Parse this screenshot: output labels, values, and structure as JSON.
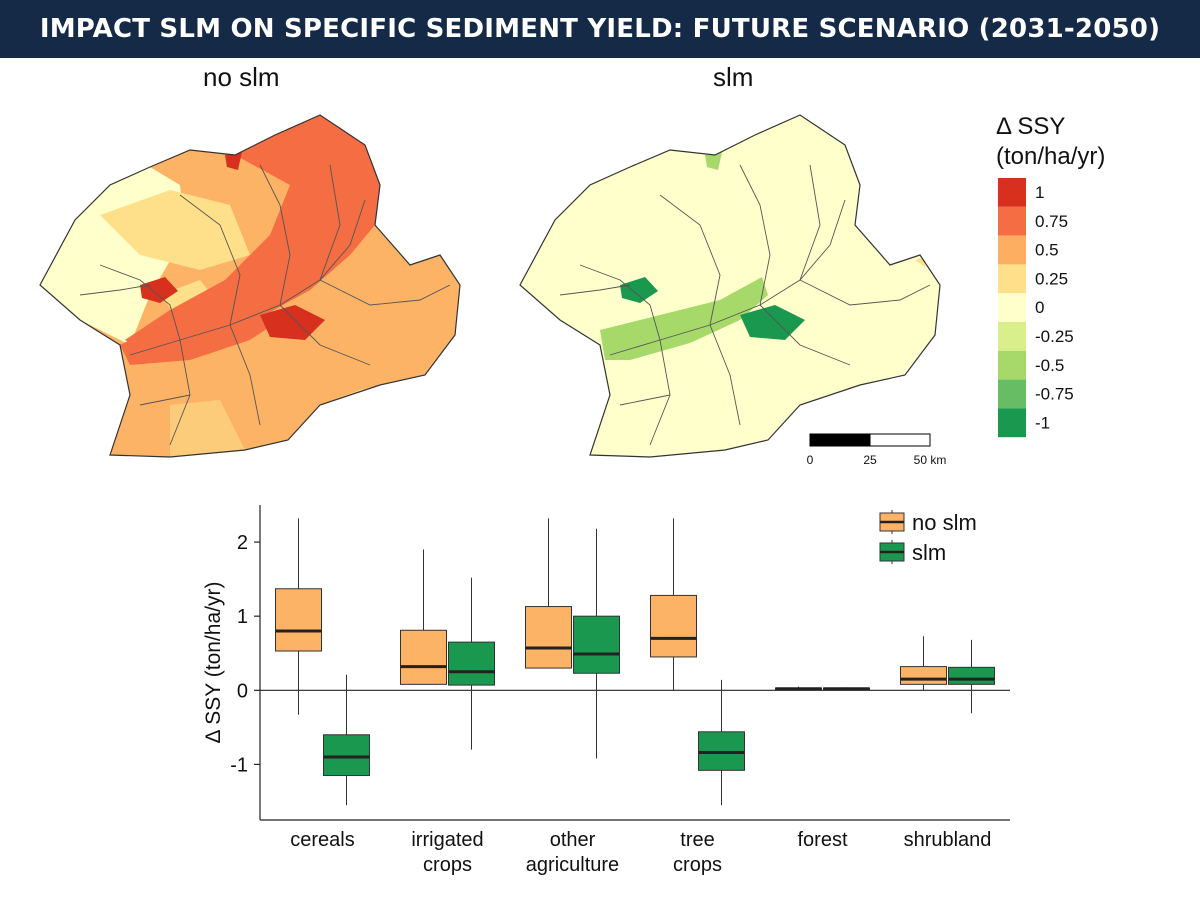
{
  "header": {
    "title": "IMPACT SLM ON SPECIFIC SEDIMENT YIELD: FUTURE SCENARIO (2031-2050)"
  },
  "maps": {
    "left_title": "no slm",
    "right_title": "slm"
  },
  "color_legend": {
    "title_line1": "Δ SSY",
    "title_line2": "(ton/ha/yr)",
    "items": [
      {
        "label": "1",
        "color": "#d7301f"
      },
      {
        "label": "0.75",
        "color": "#f46d43"
      },
      {
        "label": "0.5",
        "color": "#fdae61"
      },
      {
        "label": "0.25",
        "color": "#fee08b"
      },
      {
        "label": "0",
        "color": "#ffffcc"
      },
      {
        "label": "-0.25",
        "color": "#d9ef8b"
      },
      {
        "label": "-0.5",
        "color": "#a6d96a"
      },
      {
        "label": "-0.75",
        "color": "#66bd63"
      },
      {
        "label": "-1",
        "color": "#1a9850"
      }
    ]
  },
  "scale_bar": {
    "labels": [
      "0",
      "25",
      "50 km"
    ]
  },
  "chart_data": {
    "type": "boxplot",
    "ylabel": "Δ SSY (ton/ha/yr)",
    "ylim": [
      -1.75,
      2.5
    ],
    "yticks": [
      -1,
      0,
      1,
      2
    ],
    "reference_line": 0,
    "categories": [
      "cereals",
      "irrigated crops",
      "other agriculture",
      "tree crops",
      "forest",
      "shrubland"
    ],
    "category_lines": [
      [
        "cereals"
      ],
      [
        "irrigated",
        "crops"
      ],
      [
        "other",
        "agriculture"
      ],
      [
        "tree",
        "crops"
      ],
      [
        "forest"
      ],
      [
        "shrubland"
      ]
    ],
    "legend": {
      "position": "top-right"
    },
    "series": [
      {
        "name": "no slm",
        "color": "#fdb366",
        "boxes": [
          {
            "whisker_low": -0.33,
            "q1": 0.53,
            "median": 0.8,
            "q3": 1.37,
            "whisker_high": 2.32
          },
          {
            "whisker_low": 0.08,
            "q1": 0.08,
            "median": 0.32,
            "q3": 0.81,
            "whisker_high": 1.9
          },
          {
            "whisker_low": 0.3,
            "q1": 0.3,
            "median": 0.57,
            "q3": 1.13,
            "whisker_high": 2.32
          },
          {
            "whisker_low": 0.0,
            "q1": 0.45,
            "median": 0.7,
            "q3": 1.28,
            "whisker_high": 2.32
          },
          {
            "whisker_low": 0.0,
            "q1": 0.01,
            "median": 0.02,
            "q3": 0.03,
            "whisker_high": 0.05
          },
          {
            "whisker_low": 0.0,
            "q1": 0.08,
            "median": 0.15,
            "q3": 0.32,
            "whisker_high": 0.73
          }
        ]
      },
      {
        "name": "slm",
        "color": "#1a9850",
        "boxes": [
          {
            "whisker_low": -1.55,
            "q1": -1.15,
            "median": -0.9,
            "q3": -0.6,
            "whisker_high": 0.21
          },
          {
            "whisker_low": -0.8,
            "q1": 0.07,
            "median": 0.25,
            "q3": 0.65,
            "whisker_high": 1.52
          },
          {
            "whisker_low": -0.92,
            "q1": 0.23,
            "median": 0.49,
            "q3": 1.0,
            "whisker_high": 2.18
          },
          {
            "whisker_low": -1.55,
            "q1": -1.08,
            "median": -0.84,
            "q3": -0.56,
            "whisker_high": 0.14
          },
          {
            "whisker_low": 0.0,
            "q1": 0.01,
            "median": 0.02,
            "q3": 0.03,
            "whisker_high": 0.04
          },
          {
            "whisker_low": -0.31,
            "q1": 0.08,
            "median": 0.15,
            "q3": 0.31,
            "whisker_high": 0.68
          }
        ]
      }
    ]
  }
}
